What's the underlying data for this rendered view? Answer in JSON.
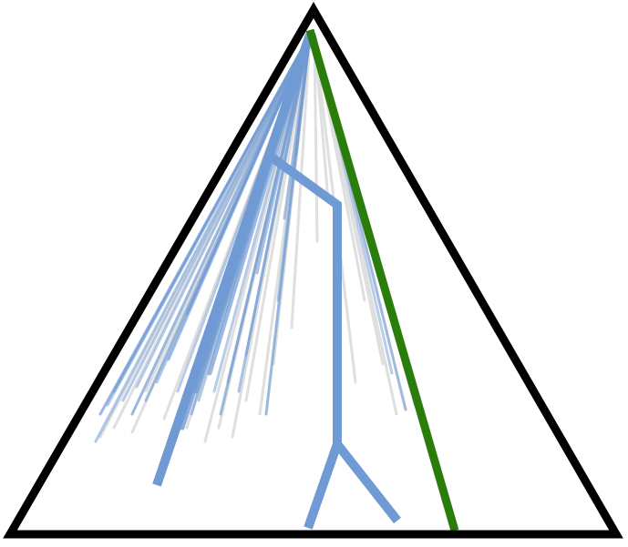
{
  "colors": {
    "background": "#ffffff",
    "triangle_outline": "#000000",
    "blue_lines": "#6f9ad3",
    "grey_lines": "#dcdcdc",
    "green_line": "#2a7d0b"
  },
  "elements": {
    "triangle": "triangle-outline",
    "green_line": "green-line",
    "blue_tree": "blue-branching-path",
    "blue_bundle": "blue-line-bundle",
    "grey_bundle": "grey-line-bundle"
  }
}
